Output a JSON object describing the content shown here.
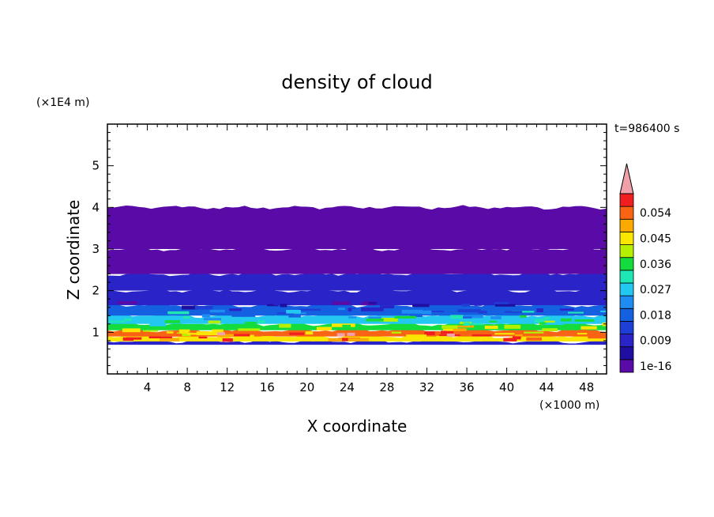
{
  "chart_data": {
    "type": "heatmap",
    "title": "density of cloud",
    "xlabel": "X coordinate",
    "ylabel": "Z coordinate",
    "x_unit": "(×1000 m)",
    "y_unit": "(×1E4 m)",
    "time_label": "t=986400 s",
    "xlim": [
      0,
      50
    ],
    "ylim": [
      0,
      6
    ],
    "x_ticks": [
      "4",
      "8",
      "12",
      "16",
      "20",
      "24",
      "28",
      "32",
      "36",
      "40",
      "44",
      "48"
    ],
    "y_ticks": [
      "1",
      "2",
      "3",
      "4",
      "5"
    ],
    "grid": false,
    "colorbar": {
      "levels": [
        "1e-16",
        "",
        "0.009",
        "",
        "0.018",
        "",
        "0.027",
        "",
        "0.036",
        "",
        "0.045",
        "",
        "0.054",
        ""
      ],
      "labels": [
        "1e-16",
        "0.009",
        "0.018",
        "0.027",
        "0.036",
        "0.045",
        "0.054"
      ],
      "colors": [
        "#5a0aa6",
        "#1e0fa0",
        "#2a23c8",
        "#1e3fd6",
        "#1460e0",
        "#1e8cf0",
        "#23c8f0",
        "#1ee6b4",
        "#14dc3c",
        "#b4f000",
        "#fae600",
        "#faaa00",
        "#f86414",
        "#f01e1e"
      ],
      "extend_color": "#f0a0a8"
    },
    "layers": [
      {
        "z_bottom": 0.7,
        "z_top": 0.78,
        "value": 0.009
      },
      {
        "z_bottom": 0.78,
        "z_top": 0.9,
        "value": 0.045
      },
      {
        "z_bottom": 0.9,
        "z_top": 1.05,
        "value": 0.054
      },
      {
        "z_bottom": 1.05,
        "z_top": 1.2,
        "value": 0.036
      },
      {
        "z_bottom": 1.2,
        "z_top": 1.4,
        "value": 0.027
      },
      {
        "z_bottom": 1.4,
        "z_top": 1.65,
        "value": 0.018
      },
      {
        "z_bottom": 1.65,
        "z_top": 2.0,
        "value": 0.013
      },
      {
        "z_bottom": 2.0,
        "z_top": 2.4,
        "value": 0.009
      },
      {
        "z_bottom": 2.4,
        "z_top": 3.0,
        "value": 0.004
      },
      {
        "z_bottom": 3.0,
        "z_top": 4.0,
        "value": 1e-16
      }
    ]
  },
  "colors": {
    "background": "#ffffff",
    "axis": "#000000"
  }
}
